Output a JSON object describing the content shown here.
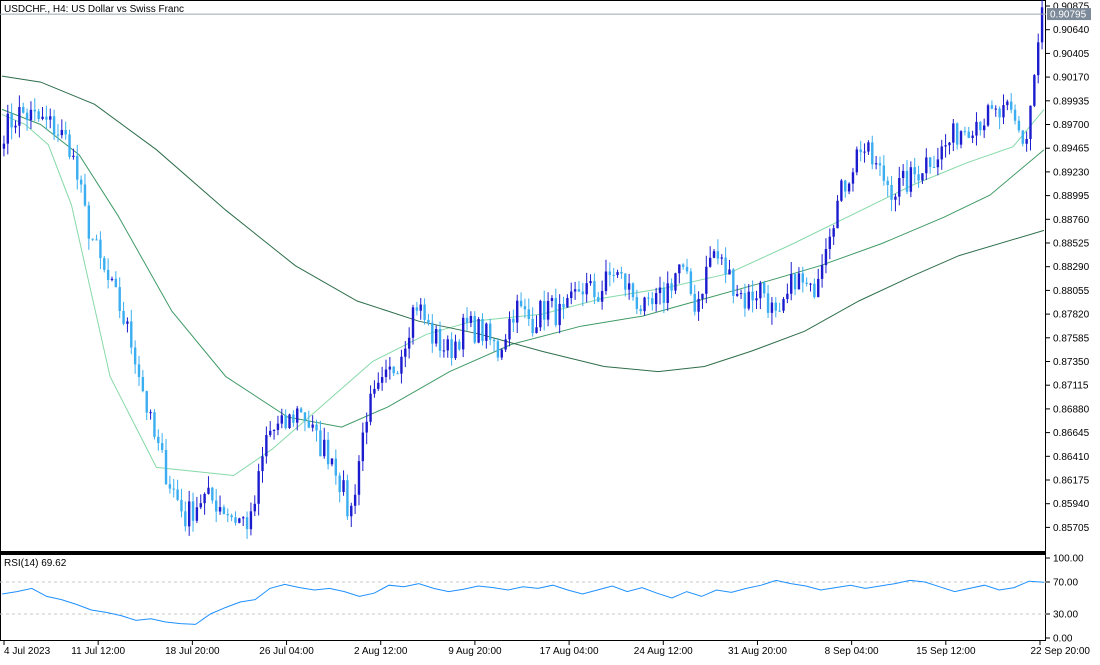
{
  "window": {
    "title": "USDCHF., H4:  US Dollar vs Swiss Franc",
    "current_price_label": "0.90795"
  },
  "colors": {
    "background": "#ffffff",
    "bull_candle": "#1c1ccf",
    "bear_candle": "#3aaef0",
    "ma_fast": "#86d9a8",
    "ma_mid": "#3f9a66",
    "ma_slow": "#2d6e4a",
    "rsi_line": "#1e90ff",
    "grid_level": "#c8c8c8",
    "axis": "#000000"
  },
  "chart_data": [
    {
      "type": "candlestick",
      "symbol": "USDCHF.",
      "timeframe": "H4",
      "description": "US Dollar vs Swiss Franc",
      "ylim": [
        0.8557,
        0.90875
      ],
      "y_ticks": [
        "0.90875",
        "0.90640",
        "0.90405",
        "0.90170",
        "0.89935",
        "0.89700",
        "0.89465",
        "0.89230",
        "0.88995",
        "0.88760",
        "0.88525",
        "0.88290",
        "0.88055",
        "0.87820",
        "0.87585",
        "0.87350",
        "0.87115",
        "0.86880",
        "0.86645",
        "0.86410",
        "0.86175",
        "0.85940",
        "0.85705"
      ],
      "x_ticks": [
        "4 Jul 2023",
        "11 Jul 12:00",
        "18 Jul 20:00",
        "26 Jul 04:00",
        "2 Aug 12:00",
        "9 Aug 20:00",
        "17 Aug 04:00",
        "24 Aug 12:00",
        "31 Aug 20:00",
        "8 Sep 04:00",
        "15 Sep 12:00",
        "22 Sep 20:00"
      ],
      "close_anchors": [
        0.8965,
        0.8982,
        0.8975,
        0.8968,
        0.895,
        0.8875,
        0.8825,
        0.879,
        0.874,
        0.8665,
        0.8618,
        0.858,
        0.86,
        0.8595,
        0.858,
        0.8575,
        0.8665,
        0.867,
        0.869,
        0.8655,
        0.864,
        0.858,
        0.8685,
        0.871,
        0.874,
        0.8795,
        0.876,
        0.8745,
        0.877,
        0.8765,
        0.8745,
        0.879,
        0.8775,
        0.879,
        0.8778,
        0.881,
        0.88,
        0.8825,
        0.8805,
        0.8782,
        0.88,
        0.883,
        0.879,
        0.8845,
        0.882,
        0.8795,
        0.881,
        0.877,
        0.882,
        0.88,
        0.8865,
        0.891,
        0.895,
        0.8925,
        0.8905,
        0.8915,
        0.8935,
        0.8945,
        0.8965,
        0.8975,
        0.8978,
        0.898,
        0.895,
        0.908
      ],
      "ma_fast": [
        [
          0,
          0.898
        ],
        [
          6,
          0.897
        ],
        [
          12,
          0.895
        ],
        [
          18,
          0.889
        ],
        [
          28,
          0.872
        ],
        [
          40,
          0.863
        ],
        [
          60,
          0.8622
        ],
        [
          70,
          0.8648
        ],
        [
          82,
          0.8688
        ],
        [
          96,
          0.8735
        ],
        [
          110,
          0.8762
        ],
        [
          122,
          0.8775
        ],
        [
          140,
          0.8782
        ],
        [
          156,
          0.8798
        ],
        [
          172,
          0.8808
        ],
        [
          188,
          0.8822
        ],
        [
          204,
          0.885
        ],
        [
          220,
          0.888
        ],
        [
          236,
          0.891
        ],
        [
          250,
          0.8932
        ],
        [
          262,
          0.8948
        ],
        [
          270,
          0.8985
        ]
      ],
      "ma_mid": [
        [
          0,
          0.8985
        ],
        [
          10,
          0.897
        ],
        [
          20,
          0.894
        ],
        [
          30,
          0.888
        ],
        [
          44,
          0.8785
        ],
        [
          58,
          0.872
        ],
        [
          74,
          0.868
        ],
        [
          88,
          0.867
        ],
        [
          100,
          0.869
        ],
        [
          116,
          0.8725
        ],
        [
          132,
          0.8752
        ],
        [
          150,
          0.877
        ],
        [
          166,
          0.878
        ],
        [
          180,
          0.8795
        ],
        [
          196,
          0.8812
        ],
        [
          212,
          0.883
        ],
        [
          228,
          0.8852
        ],
        [
          244,
          0.8878
        ],
        [
          256,
          0.89
        ],
        [
          270,
          0.8945
        ]
      ],
      "ma_slow": [
        [
          0,
          0.9018
        ],
        [
          10,
          0.9012
        ],
        [
          24,
          0.899
        ],
        [
          40,
          0.8945
        ],
        [
          58,
          0.8885
        ],
        [
          76,
          0.883
        ],
        [
          92,
          0.8795
        ],
        [
          108,
          0.8775
        ],
        [
          124,
          0.8762
        ],
        [
          140,
          0.8745
        ],
        [
          156,
          0.873
        ],
        [
          170,
          0.8725
        ],
        [
          182,
          0.873
        ],
        [
          194,
          0.8745
        ],
        [
          208,
          0.8765
        ],
        [
          222,
          0.8795
        ],
        [
          236,
          0.882
        ],
        [
          248,
          0.884
        ],
        [
          270,
          0.8865
        ]
      ]
    },
    {
      "type": "line",
      "indicator": "RSI(14)",
      "label": "RSI(14) 69.62",
      "value": 69.62,
      "ylim": [
        0,
        100
      ],
      "y_ticks": [
        "100.00",
        "70.00",
        "30.00",
        "0.00"
      ],
      "levels": [
        70,
        30
      ],
      "values": [
        55,
        58,
        62,
        52,
        48,
        42,
        35,
        32,
        28,
        22,
        24,
        20,
        18,
        17,
        30,
        38,
        45,
        48,
        62,
        67,
        63,
        60,
        62,
        58,
        52,
        56,
        66,
        64,
        68,
        62,
        58,
        61,
        65,
        63,
        60,
        64,
        62,
        66,
        60,
        55,
        60,
        65,
        58,
        63,
        56,
        50,
        58,
        52,
        60,
        57,
        62,
        66,
        72,
        68,
        65,
        60,
        63,
        66,
        62,
        65,
        68,
        72,
        70,
        64,
        58,
        62,
        66,
        60,
        63,
        71,
        69.62
      ]
    }
  ]
}
